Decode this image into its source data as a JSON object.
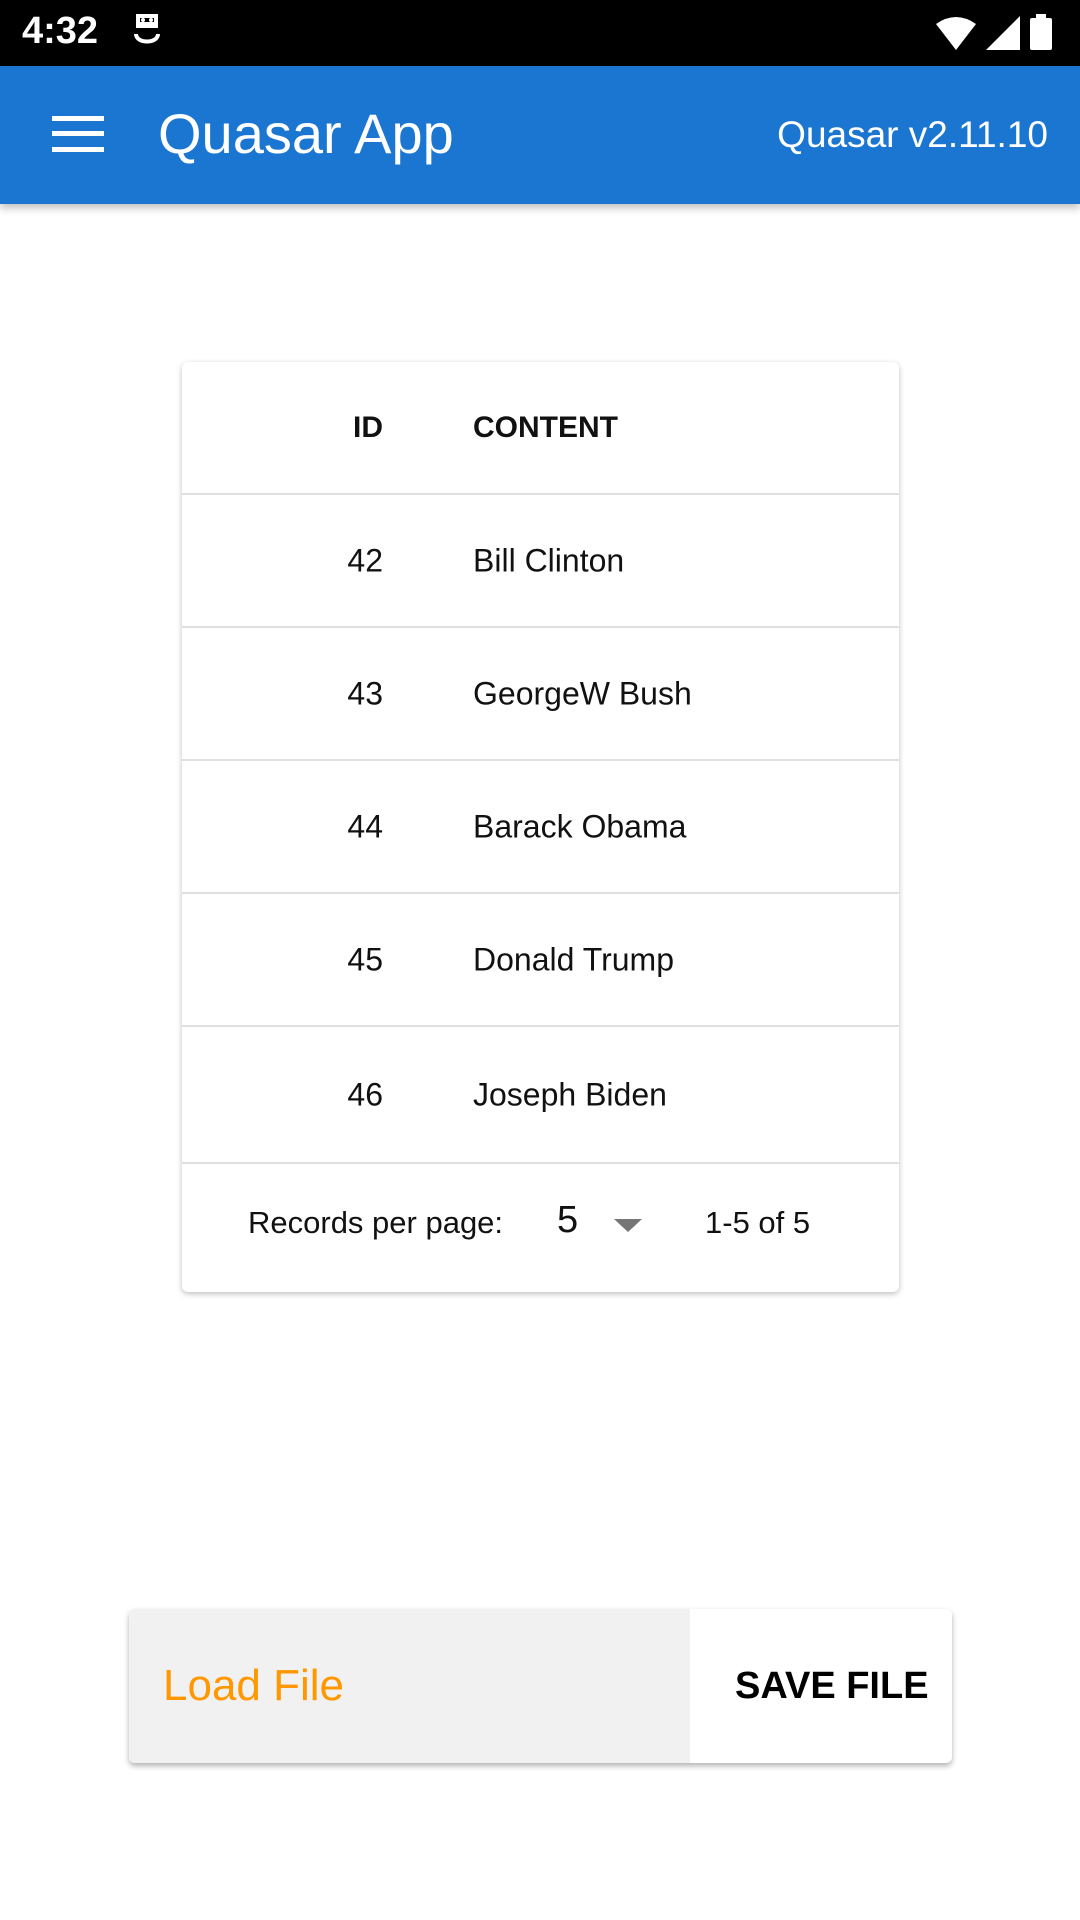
{
  "status_bar": {
    "time": "4:32",
    "sim_icon": "sim-card-icon",
    "wifi_icon": "wifi-icon",
    "signal_icon": "signal-icon",
    "battery_icon": "battery-icon"
  },
  "app_bar": {
    "menu_icon": "hamburger-menu-icon",
    "title": "Quasar App",
    "version": "Quasar v2.11.10",
    "color": "#1b76d2"
  },
  "table": {
    "columns": [
      "ID",
      "CONTENT"
    ],
    "rows": [
      {
        "id": "42",
        "content": "Bill Clinton"
      },
      {
        "id": "43",
        "content": "GeorgeW Bush"
      },
      {
        "id": "44",
        "content": "Barack Obama"
      },
      {
        "id": "45",
        "content": "Donald Trump"
      },
      {
        "id": "46",
        "content": "Joseph Biden"
      }
    ],
    "pagination": {
      "label": "Records per page:",
      "per_page": "5",
      "range": "1-5 of 5"
    }
  },
  "actions": {
    "load_label": "Load File",
    "save_label": "SAVE FILE",
    "load_color": "#ff9800"
  }
}
